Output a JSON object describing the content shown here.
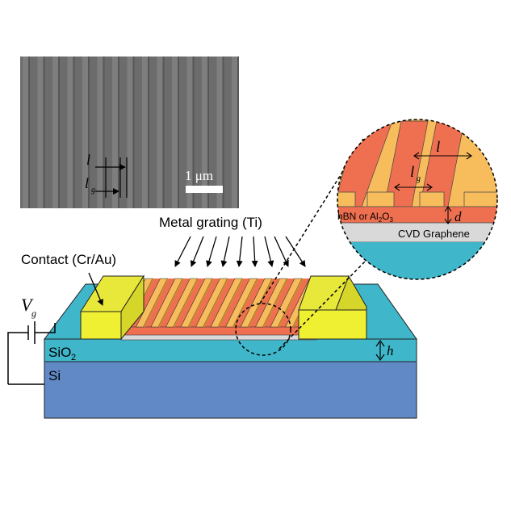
{
  "sem_image": {
    "label_l": "l",
    "label_lg": "l",
    "label_lg_sub": "g",
    "scalebar_label": "1 μm"
  },
  "device": {
    "grating_label": "Metal grating (Ti)",
    "contact_label": "Contact (Cr/Au)",
    "gate_label": "V",
    "gate_sub": "g",
    "sio2_label": "SiO",
    "sio2_sub": "2",
    "si_label": "Si",
    "h_label": "h"
  },
  "inset": {
    "label_l": "l",
    "label_lg": "l",
    "label_lg_sub": "g",
    "dielectric_label_a": "hBN or Al",
    "dielectric_sub_a": "2",
    "dielectric_label_b": "O",
    "dielectric_sub_b": "3",
    "d_label": "d",
    "graphene_label": "CVD Graphene"
  },
  "colors": {
    "metal": "#f7bc5c",
    "dielectric": "#ef7050",
    "contact": "#f0f032",
    "sio2": "#3fb6c9",
    "si": "#6189c6",
    "graphene": "#d9d9d9"
  }
}
